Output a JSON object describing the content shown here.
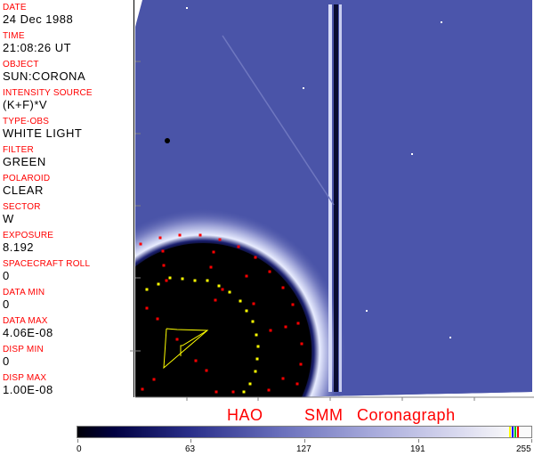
{
  "metadata_panel": [
    {
      "label": "DATE",
      "value": "24 Dec 1988"
    },
    {
      "label": "TIME",
      "value": "21:08:26 UT"
    },
    {
      "label": "OBJECT",
      "value": "SUN:CORONA"
    },
    {
      "label": "INTENSITY SOURCE",
      "value": "(K+F)*V"
    },
    {
      "label": "TYPE-OBS",
      "value": "WHITE LIGHT"
    },
    {
      "label": "FILTER",
      "value": "GREEN"
    },
    {
      "label": "POLAROID",
      "value": "CLEAR"
    },
    {
      "label": "SECTOR",
      "value": "W"
    },
    {
      "label": "EXPOSURE",
      "value": "8.192"
    },
    {
      "label": "SPACECRAFT ROLL",
      "value": "0"
    },
    {
      "label": "DATA MIN",
      "value": "0"
    },
    {
      "label": "DATA MAX",
      "value": "4.06E-08"
    },
    {
      "label": "DISP MIN",
      "value": "0"
    },
    {
      "label": "DISP MAX",
      "value": "1.00E-08"
    }
  ],
  "title": "HAO   SMM Coronagraph",
  "colorbar": {
    "ticks": [
      "0",
      "63",
      "127",
      "191",
      "255"
    ],
    "gradient_colors": [
      "#000008",
      "#2a2f8a",
      "#a7aadb",
      "#fafafa"
    ],
    "reserved_colors": [
      "#ffff00",
      "#0000ff",
      "#00c000",
      "#ff0000"
    ]
  },
  "colors": {
    "label": "#ff0000",
    "marker_red": "#ff0000",
    "marker_yellow": "#ffff00",
    "corona": "#4a54a8"
  }
}
